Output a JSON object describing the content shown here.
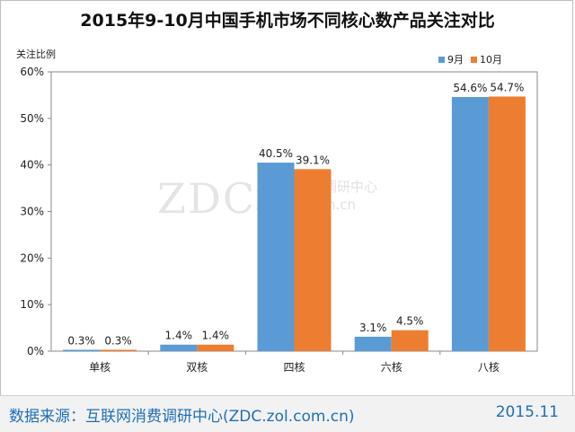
{
  "watermark": {
    "logo": "ZDC",
    "name": "互联网消费调研中心",
    "url": "zdc.zol.com.cn"
  },
  "footer": {
    "source": "数据来源：互联网消费调研中心(ZDC.zol.com.cn)",
    "date": "2015.11"
  },
  "chart_data": {
    "type": "bar",
    "title": "2015年9-10月中国手机市场不同核心数产品关注对比",
    "ylabel": "关注比例",
    "xlabel": "",
    "categories": [
      "单核",
      "双核",
      "四核",
      "六核",
      "八核"
    ],
    "series": [
      {
        "name": "9月",
        "values": [
          0.3,
          1.4,
          40.5,
          3.1,
          54.6
        ],
        "color": "#5b9bd5"
      },
      {
        "name": "10月",
        "values": [
          0.3,
          1.4,
          39.1,
          4.5,
          54.7
        ],
        "color": "#ed7d31"
      }
    ],
    "data_labels": [
      [
        "0.3%",
        "1.4%",
        "40.5%",
        "3.1%",
        "54.6%"
      ],
      [
        "0.3%",
        "1.4%",
        "39.1%",
        "4.5%",
        "54.7%"
      ]
    ],
    "ylim": [
      0,
      60
    ],
    "yticks": [
      "0%",
      "10%",
      "20%",
      "30%",
      "40%",
      "50%",
      "60%"
    ],
    "grid": false,
    "legend_position": "top-right"
  }
}
